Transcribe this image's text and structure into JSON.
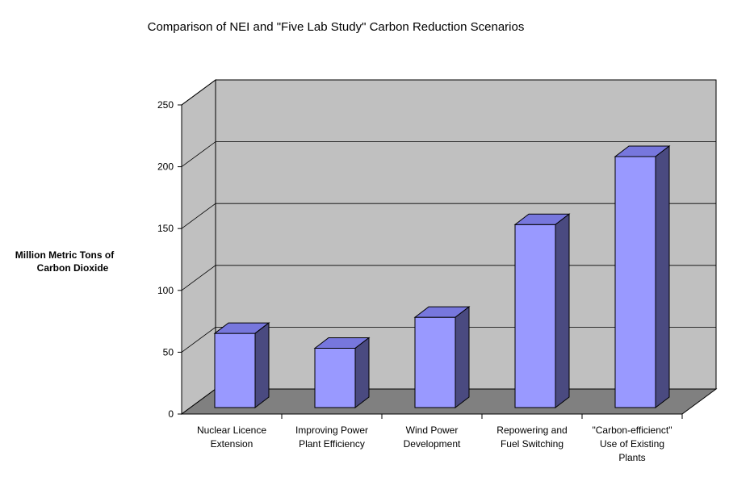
{
  "chart_data": {
    "type": "bar",
    "title": "Comparison of NEI and \"Five Lab Study\" Carbon Reduction Scenarios",
    "ylabel": [
      "Million Metric Tons of",
      "Carbon Dioxide"
    ],
    "xlabel": "",
    "categories": [
      [
        "Nuclear Licence",
        "Extension"
      ],
      [
        "Improving Power",
        "Plant Efficiency"
      ],
      [
        "Wind Power",
        "Development"
      ],
      [
        "Repowering and",
        "Fuel Switching"
      ],
      [
        "\"Carbon-efficienct\"",
        "Use of Existing",
        "Plants"
      ]
    ],
    "values": [
      60,
      48,
      73,
      148,
      203
    ],
    "ylim": [
      0,
      250
    ],
    "yticks": [
      0,
      50,
      100,
      150,
      200,
      250
    ],
    "grid": true,
    "legend": "none",
    "style": "3d",
    "colors": {
      "bar_front": "#9999ff",
      "bar_top": "#7777dd",
      "bar_side": "#4a4a80",
      "wall": "#c0c0c0",
      "floor": "#808080",
      "gridline": "#000000"
    }
  }
}
